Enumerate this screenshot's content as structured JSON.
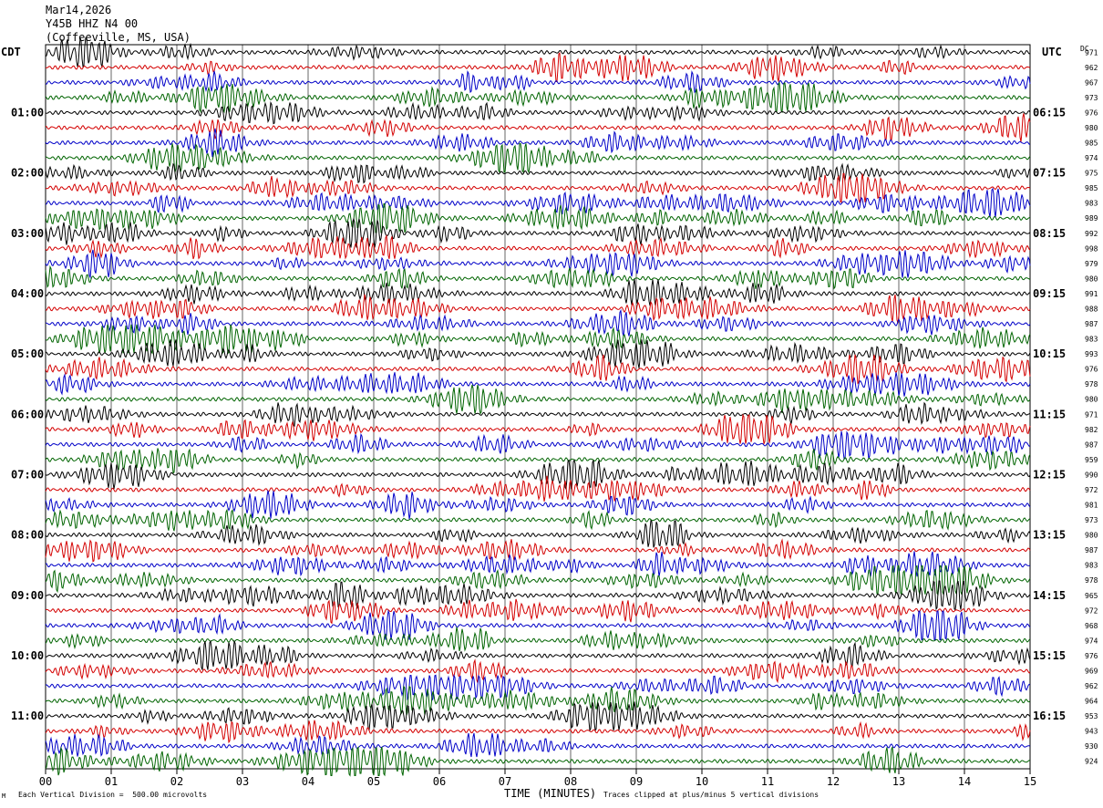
{
  "header": {
    "date": "Mar14,2026",
    "station": "Y45B HHZ N4 00",
    "location": "(Coffeeville, MS, USA)"
  },
  "left_zone": "CDT",
  "right_zone": "UTC",
  "dc_label": "DC",
  "footer": {
    "scale_note": "Each Vertical Division =  500.00 microvolts",
    "xlabel": "TIME (MINUTES)",
    "clip_note": "Traces clipped at plus/minus 5 vertical divisions",
    "corner_mark": "M"
  },
  "colors": {
    "cycle": [
      "#000000",
      "#d40000",
      "#0000c8",
      "#006400"
    ],
    "grid": "#000000"
  },
  "chart_data": {
    "type": "line",
    "title": "",
    "xlabel": "TIME (MINUTES)",
    "xlim": [
      0,
      15
    ],
    "x_ticks": [
      "00",
      "01",
      "02",
      "03",
      "04",
      "05",
      "06",
      "07",
      "08",
      "09",
      "10",
      "11",
      "12",
      "13",
      "14",
      "15"
    ],
    "traces_per_hour": 4,
    "left_hour_labels": [
      "01:00",
      "02:00",
      "03:00",
      "04:00",
      "05:00",
      "06:00",
      "07:00",
      "08:00",
      "09:00",
      "10:00",
      "11:00"
    ],
    "right_hour_labels": [
      "06:15",
      "07:15",
      "08:15",
      "09:15",
      "10:15",
      "11:15",
      "12:15",
      "13:15",
      "14:15",
      "15:15",
      "16:15"
    ],
    "dc_offsets": [
      "971",
      "962",
      "967",
      "973",
      "976",
      "980",
      "985",
      "974",
      "975",
      "985",
      "983",
      "989",
      "992",
      "998",
      "979",
      "980",
      "991",
      "988",
      "987",
      "983",
      "993",
      "976",
      "978",
      "980",
      "971",
      "982",
      "987",
      "959",
      "990",
      "972",
      "981",
      "973",
      "980",
      "987",
      "983",
      "978",
      "965",
      "972",
      "968",
      "974",
      "976",
      "969",
      "962",
      "964",
      "953",
      "943",
      "930",
      "924"
    ]
  }
}
